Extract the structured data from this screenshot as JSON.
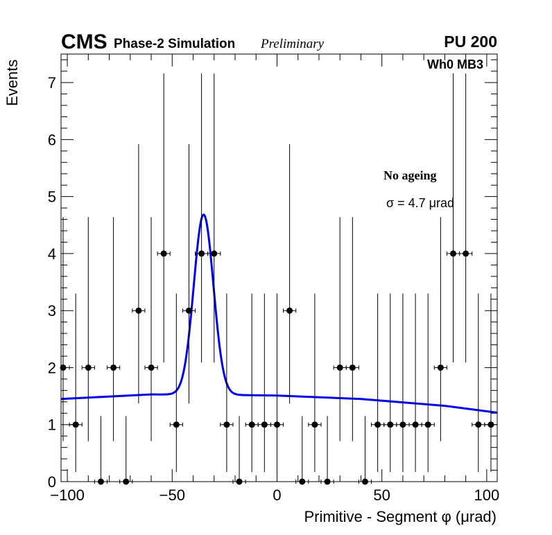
{
  "header": {
    "experiment": "CMS",
    "subtitle": "Phase-2 Simulation",
    "status": "Preliminary",
    "pileup": "PU 200",
    "chamber": "Wh0 MB3"
  },
  "annotations": {
    "ageing": "No ageing",
    "sigma": "σ = 4.7  μrad"
  },
  "chart_data": {
    "type": "scatter",
    "title": "",
    "xlabel": "Primitive - Segment φ (μrad)",
    "ylabel": "Events",
    "xlim": [
      -103,
      105
    ],
    "ylim": [
      0,
      7.5
    ],
    "x_ticks": [
      -100,
      -50,
      0,
      50,
      100
    ],
    "x_tick_labels": [
      "−100",
      "−50",
      "0",
      "50",
      "100"
    ],
    "y_ticks": [
      0,
      1,
      2,
      3,
      4,
      5,
      6,
      7
    ],
    "y_tick_labels": [
      "0",
      "1",
      "2",
      "3",
      "4",
      "5",
      "6",
      "7"
    ],
    "grid": false,
    "series": [
      {
        "kind": "histogram-points",
        "color": "#000000",
        "bin_half_width": 3,
        "x": [
          -102,
          -96,
          -90,
          -84,
          -78,
          -72,
          -66,
          -60,
          -54,
          -48,
          -42,
          -36,
          -30,
          -24,
          -18,
          -12,
          -6,
          0,
          6,
          12,
          18,
          24,
          30,
          36,
          42,
          48,
          54,
          60,
          66,
          72,
          78,
          84,
          90,
          96,
          102
        ],
        "y": [
          2,
          1,
          2,
          0,
          2,
          0,
          3,
          2,
          4,
          1,
          3,
          4,
          4,
          1,
          0,
          1,
          1,
          1,
          3,
          0,
          1,
          0,
          2,
          2,
          0,
          1,
          1,
          1,
          1,
          1,
          2,
          4,
          4,
          1,
          1
        ],
        "err_low": [
          1.29,
          0.83,
          1.29,
          0,
          1.29,
          0,
          1.63,
          1.29,
          1.91,
          0.83,
          1.63,
          1.91,
          1.91,
          0.83,
          0,
          0.83,
          0.83,
          0.83,
          1.63,
          0,
          0.83,
          0,
          1.29,
          1.29,
          0,
          0.83,
          0.83,
          0.83,
          0.83,
          0.83,
          1.29,
          1.91,
          1.91,
          0.83,
          0.83
        ],
        "err_high": [
          2.64,
          2.3,
          2.64,
          1.15,
          2.64,
          1.15,
          2.92,
          2.64,
          3.16,
          2.3,
          2.92,
          3.16,
          3.16,
          2.3,
          1.15,
          2.3,
          2.3,
          2.3,
          2.92,
          1.15,
          2.3,
          1.15,
          2.64,
          2.64,
          1.15,
          2.3,
          2.3,
          2.3,
          2.3,
          2.3,
          2.64,
          3.16,
          3.16,
          2.3,
          2.3
        ]
      },
      {
        "kind": "fit",
        "color": "#0000ee",
        "model": "gaussian + linear background",
        "amplitude": 3.16,
        "mean": -35,
        "sigma": 4.7,
        "background_points": [
          [
            -103,
            1.45
          ],
          [
            -60,
            1.53
          ],
          [
            -20,
            1.52
          ],
          [
            0,
            1.51
          ],
          [
            40,
            1.45
          ],
          [
            80,
            1.33
          ],
          [
            105,
            1.21
          ]
        ]
      }
    ]
  }
}
